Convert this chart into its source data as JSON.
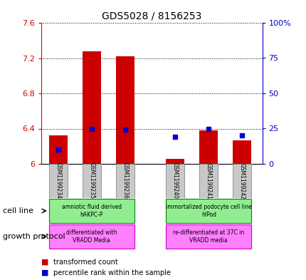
{
  "title": "GDS5028 / 8156253",
  "samples": [
    "GSM1199234",
    "GSM1199235",
    "GSM1199236",
    "GSM1199240",
    "GSM1199241",
    "GSM1199242"
  ],
  "red_values": [
    6.32,
    7.28,
    7.22,
    6.06,
    6.38,
    6.27
  ],
  "blue_percentile": [
    10,
    25,
    24,
    19,
    25,
    20
  ],
  "ylim_left": [
    6.0,
    7.6
  ],
  "ylim_right": [
    0,
    100
  ],
  "yticks_left": [
    6.0,
    6.4,
    6.8,
    7.2,
    7.6
  ],
  "ytick_labels_left": [
    "6",
    "6.4",
    "6.8",
    "7.2",
    "7.6"
  ],
  "yticks_right": [
    0,
    25,
    50,
    75,
    100
  ],
  "ytick_labels_right": [
    "0",
    "25",
    "50",
    "75",
    "100%"
  ],
  "cell_line_labels": [
    "amniotic fluid derived\nhAKPC-P",
    "immortalized podocyte cell line\nhIPod"
  ],
  "growth_protocol_labels": [
    "differentiated with\nVRADD Media",
    "re-differentiated at 37C in\nVRADD media"
  ],
  "cell_line_color": "#90EE90",
  "growth_protocol_color": "#FF80FF",
  "sample_bg_color": "#C8C8C8",
  "bar_color": "#CC0000",
  "marker_color": "#0000CC",
  "left_axis_color": "#CC0000",
  "right_axis_color": "#0000CC",
  "x_positions": [
    0,
    1,
    2,
    3.5,
    4.5,
    5.5
  ],
  "bar_width": 0.55,
  "xlim": [
    -0.5,
    6.1
  ]
}
